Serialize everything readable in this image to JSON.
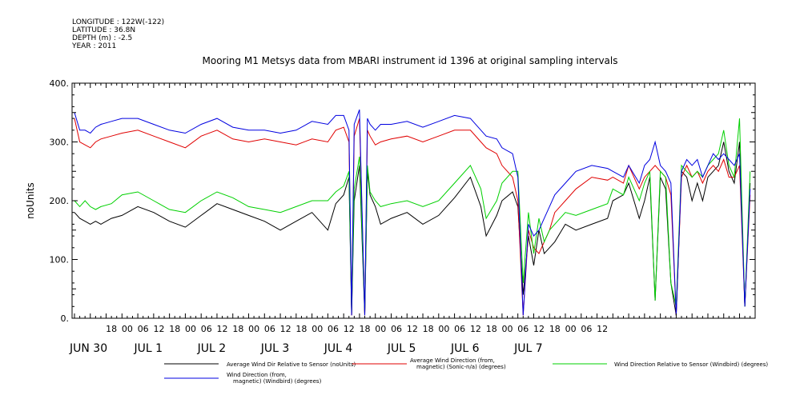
{
  "meta": {
    "longitude": "LONGITUDE : 122W(-122)",
    "latitude": "LATITUDE : 36.8N",
    "depth": "DEPTH (m) : -2.5",
    "year": "YEAR : 2011"
  },
  "chart_data": {
    "type": "line",
    "title": "Mooring M1 Metsys data from MBARI instrument id 1396 at original sampling intervals",
    "ylabel": "noUnits",
    "ylim": [
      0,
      400
    ],
    "yticks": [
      "0.",
      "100.",
      "200.",
      "300.",
      "400."
    ],
    "x_hour_ticks": [
      "18",
      "00",
      "06",
      "12",
      "18",
      "00",
      "06",
      "12",
      "18",
      "00",
      "06",
      "12",
      "18",
      "00",
      "06",
      "12",
      "18",
      "00",
      "06",
      "12",
      "18",
      "00",
      "06",
      "12",
      "18",
      "00",
      "06",
      "12",
      "18",
      "00",
      "06",
      "12"
    ],
    "x_day_labels": [
      "JUN 30",
      "JUL  1",
      "JUL  2",
      "JUL  3",
      "JUL  4",
      "JUL  5",
      "JUL  6",
      "JUL  7"
    ],
    "grid": false,
    "legend_position": "bottom",
    "series": [
      {
        "name": "Average Wind Dir Relative to Sensor (noUnits)",
        "color": "#000000",
        "x": [
          0,
          2,
          4,
          6,
          8,
          10,
          14,
          18,
          24,
          30,
          36,
          42,
          48,
          54,
          60,
          66,
          72,
          78,
          84,
          90,
          96,
          99,
          102,
          104,
          105,
          106,
          108,
          110,
          111,
          112,
          114,
          116,
          120,
          126,
          132,
          138,
          144,
          150,
          154,
          156,
          160,
          162,
          166,
          168,
          170,
          172,
          174,
          176,
          178,
          180,
          182,
          186,
          190,
          196,
          202,
          204,
          208,
          210,
          214,
          216,
          218,
          220,
          222,
          224,
          226,
          228,
          230,
          232,
          234,
          236,
          238,
          240,
          242,
          244,
          246,
          248,
          250,
          252,
          254,
          256
        ],
        "y": [
          180,
          170,
          165,
          160,
          165,
          160,
          170,
          175,
          190,
          180,
          165,
          155,
          175,
          195,
          185,
          175,
          165,
          150,
          165,
          180,
          150,
          195,
          210,
          240,
          5,
          200,
          260,
          5,
          250,
          210,
          190,
          160,
          170,
          180,
          160,
          175,
          205,
          240,
          190,
          140,
          175,
          200,
          215,
          190,
          40,
          140,
          90,
          150,
          110,
          120,
          130,
          160,
          150,
          160,
          170,
          200,
          210,
          230,
          170,
          200,
          240,
          30,
          240,
          220,
          60,
          5,
          250,
          240,
          200,
          230,
          200,
          240,
          250,
          260,
          300,
          250,
          230,
          300,
          20,
          230
        ]
      },
      {
        "name": "Average Wind Direction (from, magnetic) (Sonic-n/a) (degrees)",
        "color": "#e00000",
        "x": [
          0,
          2,
          4,
          6,
          8,
          10,
          14,
          18,
          24,
          30,
          36,
          42,
          48,
          54,
          60,
          66,
          72,
          78,
          84,
          90,
          96,
          99,
          102,
          104,
          105,
          106,
          108,
          110,
          111,
          112,
          114,
          116,
          120,
          126,
          132,
          138,
          144,
          150,
          154,
          156,
          160,
          162,
          166,
          168,
          170,
          172,
          174,
          176,
          178,
          180,
          182,
          186,
          190,
          196,
          202,
          204,
          208,
          210,
          214,
          216,
          218,
          220,
          222,
          224,
          226,
          228,
          230,
          232,
          234,
          236,
          238,
          240,
          242,
          244,
          246,
          248,
          250,
          252,
          254,
          256
        ],
        "y": [
          340,
          300,
          295,
          290,
          300,
          305,
          310,
          315,
          320,
          310,
          300,
          290,
          310,
          320,
          305,
          300,
          305,
          300,
          295,
          305,
          300,
          320,
          325,
          300,
          5,
          310,
          340,
          5,
          320,
          310,
          295,
          300,
          305,
          310,
          300,
          310,
          320,
          320,
          300,
          290,
          280,
          260,
          240,
          200,
          5,
          150,
          120,
          110,
          130,
          150,
          180,
          200,
          220,
          240,
          235,
          240,
          230,
          260,
          220,
          240,
          250,
          260,
          250,
          240,
          210,
          5,
          240,
          260,
          240,
          250,
          230,
          250,
          260,
          250,
          270,
          240,
          240,
          260,
          20,
          210
        ]
      },
      {
        "name": "Wind Direction Relative to Sensor (Windbird) (degrees)",
        "color": "#00d000",
        "x": [
          0,
          2,
          4,
          6,
          8,
          10,
          14,
          18,
          24,
          30,
          36,
          42,
          48,
          54,
          60,
          66,
          72,
          78,
          84,
          90,
          96,
          99,
          102,
          104,
          105,
          106,
          108,
          110,
          111,
          112,
          114,
          116,
          120,
          126,
          132,
          138,
          144,
          150,
          154,
          156,
          160,
          162,
          166,
          168,
          170,
          172,
          174,
          176,
          178,
          180,
          182,
          186,
          190,
          196,
          202,
          204,
          208,
          210,
          214,
          216,
          218,
          220,
          222,
          224,
          226,
          228,
          230,
          232,
          234,
          236,
          238,
          240,
          242,
          244,
          246,
          248,
          250,
          252,
          254,
          256
        ],
        "y": [
          200,
          190,
          200,
          190,
          185,
          190,
          195,
          210,
          215,
          200,
          185,
          180,
          200,
          215,
          205,
          190,
          185,
          180,
          190,
          200,
          200,
          215,
          225,
          250,
          10,
          220,
          275,
          10,
          260,
          215,
          200,
          190,
          195,
          200,
          190,
          200,
          230,
          260,
          220,
          170,
          200,
          230,
          250,
          250,
          60,
          180,
          110,
          170,
          130,
          150,
          160,
          180,
          175,
          185,
          195,
          220,
          210,
          240,
          200,
          230,
          250,
          30,
          250,
          240,
          60,
          20,
          260,
          250,
          240,
          250,
          240,
          260,
          270,
          280,
          320,
          260,
          240,
          340,
          20,
          250
        ]
      },
      {
        "name": "Wind Direction (from, magnetic) (Windbird) (degrees)",
        "color": "#0000e0",
        "x": [
          0,
          2,
          4,
          6,
          8,
          10,
          14,
          18,
          24,
          30,
          36,
          42,
          48,
          54,
          60,
          66,
          72,
          78,
          84,
          90,
          96,
          99,
          102,
          104,
          105,
          106,
          108,
          110,
          111,
          112,
          114,
          116,
          120,
          126,
          132,
          138,
          144,
          150,
          154,
          156,
          160,
          162,
          166,
          168,
          170,
          172,
          174,
          176,
          178,
          180,
          182,
          186,
          190,
          196,
          202,
          204,
          208,
          210,
          214,
          216,
          218,
          220,
          222,
          224,
          226,
          228,
          230,
          232,
          234,
          236,
          238,
          240,
          242,
          244,
          246,
          248,
          250,
          252,
          254,
          256
        ],
        "y": [
          350,
          320,
          320,
          315,
          325,
          330,
          335,
          340,
          340,
          330,
          320,
          315,
          330,
          340,
          325,
          320,
          320,
          315,
          320,
          335,
          330,
          345,
          345,
          320,
          5,
          330,
          355,
          5,
          340,
          330,
          320,
          330,
          330,
          335,
          325,
          335,
          345,
          340,
          320,
          310,
          305,
          290,
          280,
          240,
          5,
          160,
          140,
          150,
          170,
          190,
          210,
          230,
          250,
          260,
          255,
          250,
          240,
          260,
          230,
          260,
          270,
          300,
          260,
          250,
          230,
          5,
          250,
          270,
          260,
          270,
          240,
          260,
          280,
          270,
          280,
          270,
          260,
          280,
          20,
          220
        ]
      }
    ]
  }
}
